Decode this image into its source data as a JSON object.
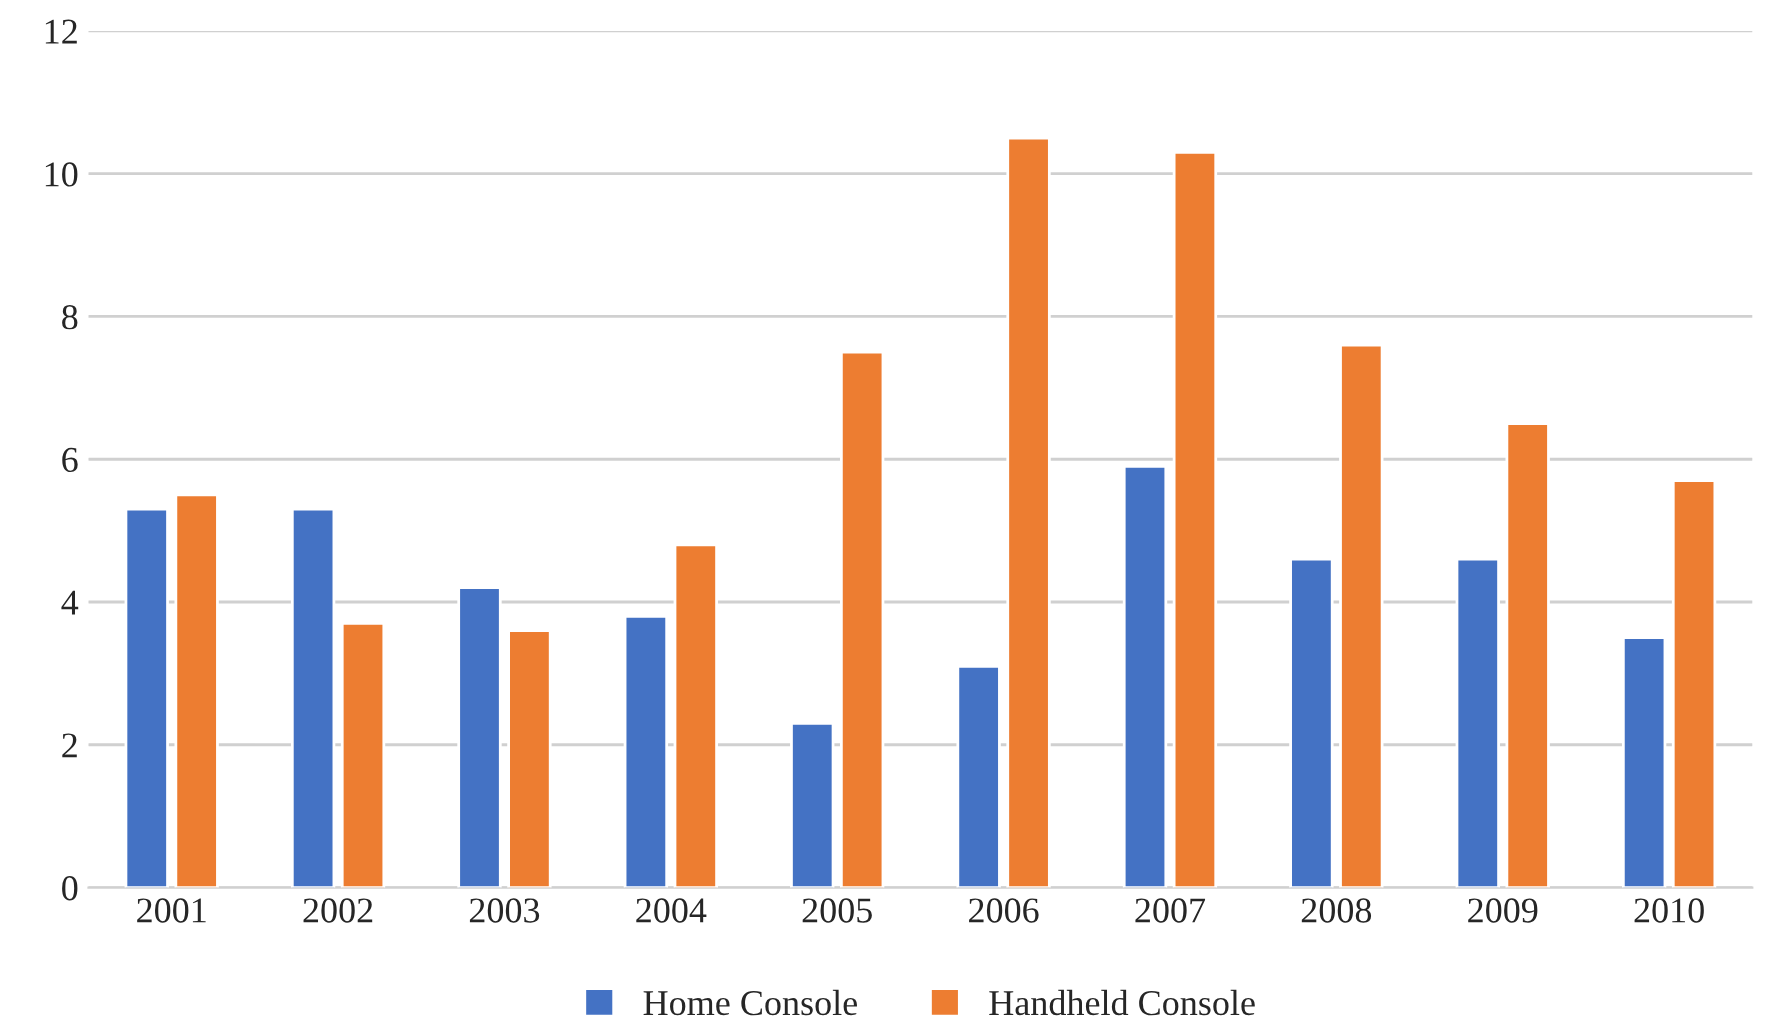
{
  "chart_data": {
    "type": "bar",
    "categories": [
      "2001",
      "2002",
      "2003",
      "2004",
      "2005",
      "2006",
      "2007",
      "2008",
      "2009",
      "2010"
    ],
    "series": [
      {
        "name": "Home Console",
        "color": "#4472c4",
        "values": [
          5.3,
          5.3,
          4.2,
          3.8,
          2.3,
          3.1,
          5.9,
          4.6,
          4.6,
          3.5
        ]
      },
      {
        "name": "Handheld Console",
        "color": "#ed7d31",
        "values": [
          5.5,
          3.7,
          3.6,
          4.8,
          7.5,
          10.5,
          10.3,
          7.6,
          6.5,
          5.7
        ]
      }
    ],
    "ylim": [
      0,
      12
    ],
    "yticks": [
      0,
      2,
      4,
      6,
      8,
      10,
      12
    ],
    "grid": "y",
    "legend": "bottom"
  }
}
